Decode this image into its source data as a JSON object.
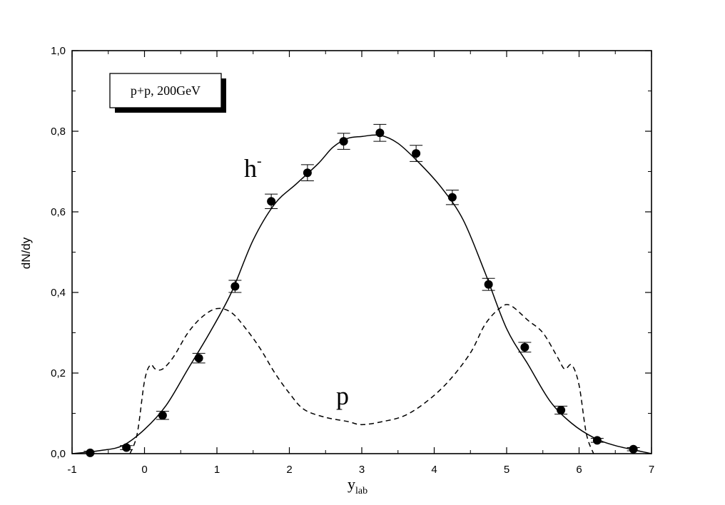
{
  "chart_data": {
    "type": "scatter",
    "xlabel": {
      "main": "y",
      "sub": "lab"
    },
    "ylabel": "dN/dy",
    "xlim": [
      -1,
      7
    ],
    "ylim": [
      0,
      1
    ],
    "x_ticks": [
      -1,
      0,
      1,
      2,
      3,
      4,
      5,
      6,
      7
    ],
    "x_tick_labels": [
      "-1",
      "0",
      "1",
      "2",
      "3",
      "4",
      "5",
      "6",
      "7"
    ],
    "y_ticks": [
      0,
      0.2,
      0.4,
      0.6,
      0.8,
      1.0
    ],
    "y_tick_labels": [
      "0,0",
      "0,2",
      "0,4",
      "0,6",
      "0,8",
      "1,0"
    ],
    "grid": false,
    "legend_box": {
      "text": "p+p, 200GeV",
      "placement": "top-left"
    },
    "annotations": [
      {
        "text": "h",
        "superscript": "-",
        "x": 1.55,
        "y": 0.7
      },
      {
        "text": "p",
        "x": 2.78,
        "y": 0.13
      }
    ],
    "series": [
      {
        "type": "scatter-errorbar",
        "points": [
          {
            "x": -0.75,
            "y": 0.002,
            "err": 0.004
          },
          {
            "x": -0.25,
            "y": 0.015,
            "err": 0.005
          },
          {
            "x": 0.25,
            "y": 0.095,
            "err": 0.01
          },
          {
            "x": 0.75,
            "y": 0.237,
            "err": 0.012
          },
          {
            "x": 1.25,
            "y": 0.415,
            "err": 0.015
          },
          {
            "x": 1.75,
            "y": 0.626,
            "err": 0.018
          },
          {
            "x": 2.25,
            "y": 0.697,
            "err": 0.02
          },
          {
            "x": 2.75,
            "y": 0.775,
            "err": 0.02
          },
          {
            "x": 3.25,
            "y": 0.796,
            "err": 0.021
          },
          {
            "x": 3.75,
            "y": 0.745,
            "err": 0.02
          },
          {
            "x": 4.25,
            "y": 0.636,
            "err": 0.018
          },
          {
            "x": 4.75,
            "y": 0.42,
            "err": 0.015
          },
          {
            "x": 5.25,
            "y": 0.264,
            "err": 0.012
          },
          {
            "x": 5.75,
            "y": 0.108,
            "err": 0.01
          },
          {
            "x": 6.25,
            "y": 0.033,
            "err": 0.005
          },
          {
            "x": 6.75,
            "y": 0.011,
            "err": 0.004
          }
        ]
      },
      {
        "type": "line",
        "style": "solid",
        "points": [
          [
            -1.0,
            0.0
          ],
          [
            -0.6,
            0.008
          ],
          [
            -0.3,
            0.02
          ],
          [
            0.0,
            0.06
          ],
          [
            0.3,
            0.12
          ],
          [
            0.6,
            0.21
          ],
          [
            0.9,
            0.3
          ],
          [
            1.2,
            0.4
          ],
          [
            1.5,
            0.53
          ],
          [
            1.8,
            0.62
          ],
          [
            2.1,
            0.67
          ],
          [
            2.4,
            0.72
          ],
          [
            2.6,
            0.76
          ],
          [
            2.8,
            0.782
          ],
          [
            3.0,
            0.787
          ],
          [
            3.25,
            0.79
          ],
          [
            3.5,
            0.77
          ],
          [
            3.8,
            0.72
          ],
          [
            4.1,
            0.66
          ],
          [
            4.4,
            0.58
          ],
          [
            4.7,
            0.45
          ],
          [
            5.0,
            0.31
          ],
          [
            5.3,
            0.22
          ],
          [
            5.6,
            0.13
          ],
          [
            5.9,
            0.075
          ],
          [
            6.2,
            0.04
          ],
          [
            6.5,
            0.02
          ],
          [
            7.0,
            0.0
          ]
        ]
      },
      {
        "type": "line",
        "style": "dashed",
        "points": [
          [
            -0.2,
            0.0
          ],
          [
            -0.1,
            0.05
          ],
          [
            0.0,
            0.18
          ],
          [
            0.08,
            0.22
          ],
          [
            0.15,
            0.21
          ],
          [
            0.25,
            0.21
          ],
          [
            0.4,
            0.24
          ],
          [
            0.6,
            0.3
          ],
          [
            0.8,
            0.34
          ],
          [
            1.0,
            0.36
          ],
          [
            1.2,
            0.35
          ],
          [
            1.4,
            0.31
          ],
          [
            1.6,
            0.26
          ],
          [
            1.8,
            0.2
          ],
          [
            2.0,
            0.15
          ],
          [
            2.2,
            0.11
          ],
          [
            2.5,
            0.09
          ],
          [
            2.8,
            0.08
          ],
          [
            3.0,
            0.072
          ],
          [
            3.3,
            0.08
          ],
          [
            3.6,
            0.095
          ],
          [
            3.9,
            0.13
          ],
          [
            4.2,
            0.18
          ],
          [
            4.5,
            0.25
          ],
          [
            4.7,
            0.32
          ],
          [
            4.9,
            0.36
          ],
          [
            5.05,
            0.368
          ],
          [
            5.3,
            0.33
          ],
          [
            5.5,
            0.3
          ],
          [
            5.7,
            0.24
          ],
          [
            5.8,
            0.21
          ],
          [
            5.9,
            0.22
          ],
          [
            6.0,
            0.17
          ],
          [
            6.1,
            0.05
          ],
          [
            6.2,
            0.0
          ]
        ]
      }
    ]
  }
}
